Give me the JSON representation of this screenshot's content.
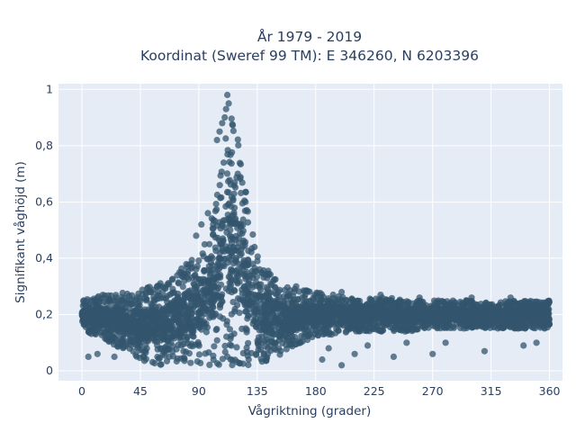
{
  "chart_data": {
    "type": "scatter",
    "title_lines": [
      "År 1979 - 2019",
      "Koordinat (Sweref 99 TM): E 346260, N 6203396"
    ],
    "xlabel": "Vågriktning (grader)",
    "ylabel": "Signifikant våghöjd (m)",
    "xlim": [
      -18,
      370
    ],
    "ylim": [
      -0.035,
      1.02
    ],
    "xticks": [
      0,
      45,
      90,
      135,
      180,
      225,
      270,
      315,
      360
    ],
    "xtick_labels": [
      "0",
      "45",
      "90",
      "135",
      "180",
      "225",
      "270",
      "315",
      "360"
    ],
    "yticks": [
      0,
      0.2,
      0.4,
      0.6,
      0.8,
      1
    ],
    "ytick_labels": [
      "0",
      "0,2",
      "0,4",
      "0,6",
      "0,8",
      "1"
    ],
    "grid": true,
    "series": [
      {
        "color": "#33566d",
        "marker_opacity": 0.75,
        "x": [
          0,
          8,
          15,
          22,
          30,
          38,
          45,
          52,
          60,
          68,
          75,
          80,
          85,
          90,
          95,
          100,
          103,
          105,
          108,
          110,
          112,
          114,
          116,
          118,
          120,
          122,
          124,
          126,
          128,
          130,
          133,
          136,
          140,
          145,
          150,
          160,
          170,
          180,
          195,
          210,
          225,
          240,
          255,
          270,
          285,
          300,
          315,
          330,
          345,
          358
        ],
        "upper": [
          0.25,
          0.26,
          0.27,
          0.27,
          0.28,
          0.28,
          0.29,
          0.3,
          0.31,
          0.33,
          0.36,
          0.38,
          0.41,
          0.44,
          0.48,
          0.55,
          0.6,
          0.66,
          0.74,
          0.82,
          0.88,
          0.91,
          0.9,
          0.88,
          0.83,
          0.78,
          0.72,
          0.65,
          0.58,
          0.52,
          0.46,
          0.42,
          0.38,
          0.35,
          0.33,
          0.3,
          0.29,
          0.28,
          0.27,
          0.26,
          0.26,
          0.26,
          0.25,
          0.25,
          0.25,
          0.25,
          0.24,
          0.25,
          0.25,
          0.25
        ],
        "lower": [
          0.14,
          0.13,
          0.12,
          0.1,
          0.08,
          0.06,
          0.04,
          0.03,
          0.02,
          0.02,
          0.02,
          0.02,
          0.02,
          0.02,
          0.02,
          0.02,
          0.02,
          0.02,
          0.02,
          0.02,
          0.02,
          0.02,
          0.02,
          0.02,
          0.02,
          0.02,
          0.02,
          0.02,
          0.02,
          0.02,
          0.02,
          0.02,
          0.03,
          0.04,
          0.05,
          0.07,
          0.1,
          0.12,
          0.13,
          0.14,
          0.14,
          0.14,
          0.14,
          0.15,
          0.15,
          0.15,
          0.15,
          0.15,
          0.15,
          0.15
        ],
        "outliers": [
          [
            112,
            0.98
          ],
          [
            113,
            0.95
          ],
          [
            111,
            0.93
          ],
          [
            110,
            0.9
          ],
          [
            108,
            0.88
          ],
          [
            106,
            0.85
          ],
          [
            104,
            0.82
          ],
          [
            97,
            0.56
          ],
          [
            92,
            0.52
          ],
          [
            88,
            0.48
          ],
          [
            120,
            0.7
          ],
          [
            126,
            0.6
          ],
          [
            165,
            0.3
          ],
          [
            200,
            0.28
          ],
          [
            230,
            0.27
          ],
          [
            260,
            0.26
          ],
          [
            300,
            0.26
          ],
          [
            330,
            0.26
          ],
          [
            5,
            0.05
          ],
          [
            12,
            0.06
          ],
          [
            25,
            0.05
          ],
          [
            200,
            0.02
          ],
          [
            210,
            0.06
          ],
          [
            240,
            0.05
          ],
          [
            270,
            0.06
          ],
          [
            310,
            0.07
          ],
          [
            340,
            0.09
          ],
          [
            350,
            0.1
          ],
          [
            185,
            0.04
          ],
          [
            190,
            0.08
          ],
          [
            220,
            0.09
          ],
          [
            250,
            0.1
          ],
          [
            280,
            0.1
          ]
        ]
      }
    ]
  }
}
